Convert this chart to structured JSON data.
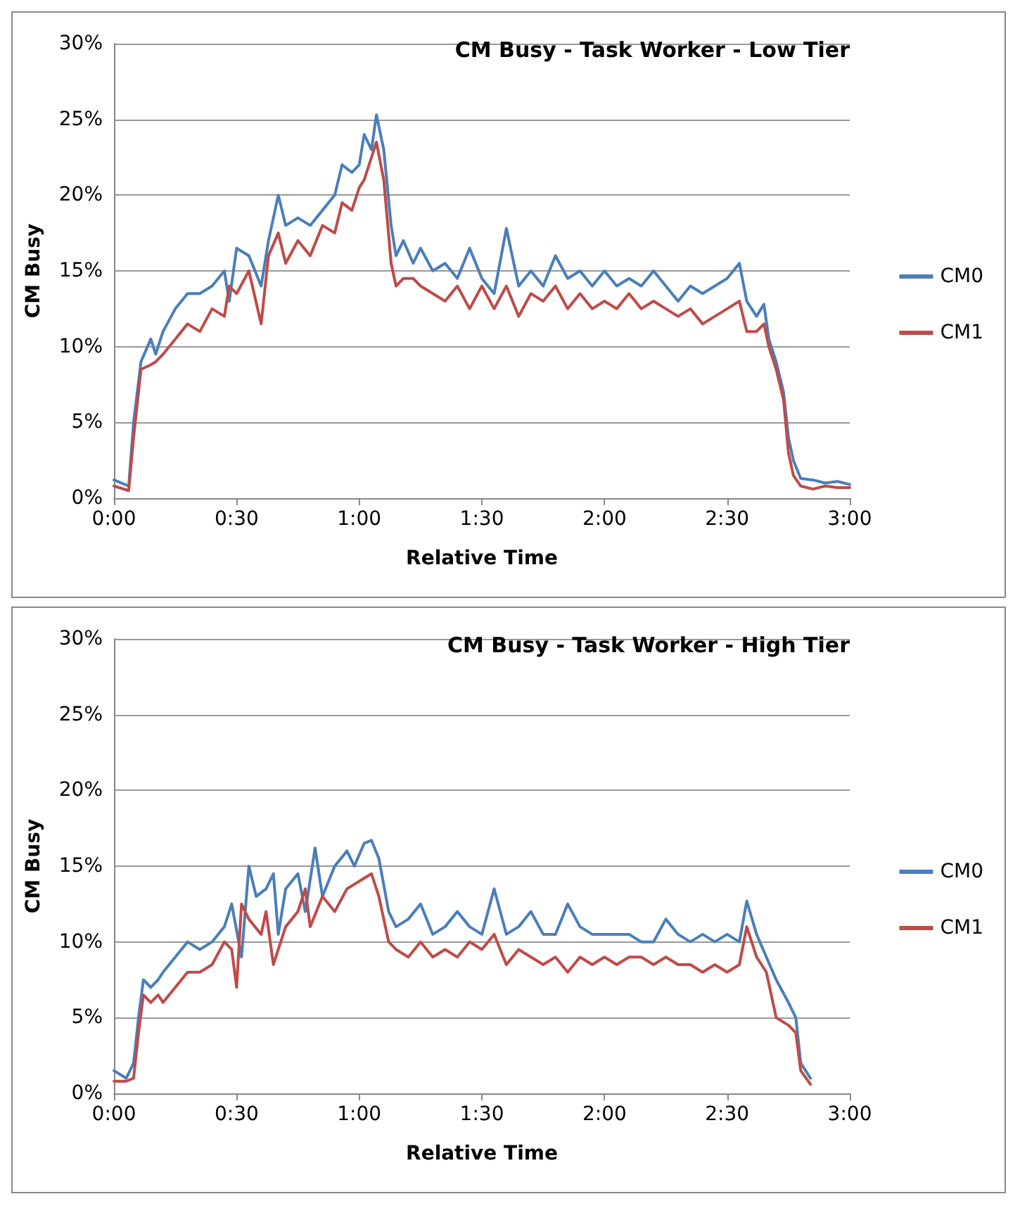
{
  "chart_data": [
    {
      "type": "line",
      "title": "CM Busy - Task Worker - Low Tier",
      "xlabel": "Relative Time",
      "ylabel": "CM Busy",
      "xlim": [
        0,
        3
      ],
      "ylim": [
        0,
        30
      ],
      "xticks": [
        {
          "value": 0,
          "label": "0:00"
        },
        {
          "value": 0.5,
          "label": "0:30"
        },
        {
          "value": 1,
          "label": "1:00"
        },
        {
          "value": 1.5,
          "label": "1:30"
        },
        {
          "value": 2,
          "label": "2:00"
        },
        {
          "value": 2.5,
          "label": "2:30"
        },
        {
          "value": 3,
          "label": "3:00"
        }
      ],
      "yticks": [
        {
          "value": 0,
          "label": "0%"
        },
        {
          "value": 5,
          "label": "5%"
        },
        {
          "value": 10,
          "label": "10%"
        },
        {
          "value": 15,
          "label": "15%"
        },
        {
          "value": 20,
          "label": "20%"
        },
        {
          "value": 25,
          "label": "25%"
        },
        {
          "value": 30,
          "label": "30%"
        }
      ],
      "grid": "y",
      "legend": "right",
      "marker": "none",
      "line_style": "solid",
      "x": [
        0,
        0.06,
        0.08,
        0.11,
        0.15,
        0.17,
        0.2,
        0.25,
        0.3,
        0.35,
        0.4,
        0.45,
        0.47,
        0.5,
        0.55,
        0.6,
        0.63,
        0.67,
        0.7,
        0.75,
        0.8,
        0.85,
        0.9,
        0.93,
        0.97,
        1.0,
        1.02,
        1.05,
        1.07,
        1.1,
        1.13,
        1.15,
        1.18,
        1.22,
        1.25,
        1.3,
        1.35,
        1.4,
        1.45,
        1.5,
        1.55,
        1.6,
        1.65,
        1.7,
        1.75,
        1.8,
        1.85,
        1.9,
        1.95,
        2.0,
        2.05,
        2.1,
        2.15,
        2.2,
        2.25,
        2.3,
        2.35,
        2.4,
        2.45,
        2.5,
        2.55,
        2.58,
        2.62,
        2.65,
        2.67,
        2.7,
        2.73,
        2.75,
        2.77,
        2.8,
        2.85,
        2.9,
        2.95,
        3.0
      ],
      "series": [
        {
          "name": "CM0",
          "color": "#4a7ebb",
          "values": [
            1.2,
            0.8,
            5,
            9,
            10.5,
            9.5,
            11,
            12.5,
            13.5,
            13.5,
            14,
            15,
            13,
            16.5,
            16,
            14,
            17,
            20,
            18,
            18.5,
            18,
            19,
            20,
            22,
            21.5,
            22,
            24,
            23,
            25.3,
            23,
            18,
            16,
            17,
            15.5,
            16.5,
            15,
            15.5,
            14.5,
            16.5,
            14.5,
            13.5,
            17.8,
            14,
            15,
            14,
            16,
            14.5,
            15,
            14,
            15,
            14,
            14.5,
            14,
            15,
            14,
            13,
            14,
            13.5,
            14,
            14.5,
            15.5,
            13,
            12,
            12.8,
            10.5,
            9,
            7,
            4,
            2.5,
            1.3,
            1.2,
            1.0,
            1.1,
            0.9
          ]
        },
        {
          "name": "CM1",
          "color": "#be4b48",
          "values": [
            0.8,
            0.5,
            4,
            8.5,
            8.8,
            9,
            9.5,
            10.5,
            11.5,
            11,
            12.5,
            12,
            14,
            13.5,
            15,
            11.5,
            16,
            17.5,
            15.5,
            17,
            16,
            18,
            17.5,
            19.5,
            19,
            20.5,
            21,
            22.5,
            23.5,
            21,
            15.5,
            14,
            14.5,
            14.5,
            14,
            13.5,
            13,
            14,
            12.5,
            14,
            12.5,
            14,
            12,
            13.5,
            13,
            14,
            12.5,
            13.5,
            12.5,
            13,
            12.5,
            13.5,
            12.5,
            13,
            12.5,
            12,
            12.5,
            11.5,
            12,
            12.5,
            13,
            11,
            11,
            11.5,
            10,
            8.5,
            6.5,
            3,
            1.5,
            0.8,
            0.6,
            0.8,
            0.7,
            0.7
          ]
        }
      ]
    },
    {
      "type": "line",
      "title": "CM Busy - Task Worker - High Tier",
      "xlabel": "Relative Time",
      "ylabel": "CM Busy",
      "xlim": [
        0,
        3
      ],
      "ylim": [
        0,
        30
      ],
      "xticks": [
        {
          "value": 0,
          "label": "0:00"
        },
        {
          "value": 0.5,
          "label": "0:30"
        },
        {
          "value": 1,
          "label": "1:00"
        },
        {
          "value": 1.5,
          "label": "1:30"
        },
        {
          "value": 2,
          "label": "2:00"
        },
        {
          "value": 2.5,
          "label": "2:30"
        },
        {
          "value": 3,
          "label": "3:00"
        }
      ],
      "yticks": [
        {
          "value": 0,
          "label": "0%"
        },
        {
          "value": 5,
          "label": "5%"
        },
        {
          "value": 10,
          "label": "10%"
        },
        {
          "value": 15,
          "label": "15%"
        },
        {
          "value": 20,
          "label": "20%"
        },
        {
          "value": 25,
          "label": "25%"
        },
        {
          "value": 30,
          "label": "30%"
        }
      ],
      "grid": "y",
      "legend": "right",
      "marker": "none",
      "line_style": "solid",
      "series": [
        {
          "name": "CM0",
          "color": "#4a7ebb",
          "x": [
            0,
            0.05,
            0.08,
            0.1,
            0.12,
            0.15,
            0.18,
            0.2,
            0.25,
            0.3,
            0.35,
            0.4,
            0.45,
            0.48,
            0.52,
            0.55,
            0.58,
            0.62,
            0.65,
            0.67,
            0.7,
            0.75,
            0.78,
            0.82,
            0.85,
            0.9,
            0.95,
            0.98,
            1.02,
            1.05,
            1.08,
            1.12,
            1.15,
            1.2,
            1.25,
            1.3,
            1.35,
            1.4,
            1.45,
            1.5,
            1.55,
            1.6,
            1.65,
            1.7,
            1.75,
            1.8,
            1.85,
            1.9,
            1.95,
            2.0,
            2.05,
            2.1,
            2.15,
            2.2,
            2.25,
            2.3,
            2.35,
            2.4,
            2.45,
            2.5,
            2.55,
            2.58,
            2.62,
            2.66,
            2.7,
            2.75,
            2.78,
            2.8,
            2.84
          ],
          "values": [
            1.5,
            1,
            2,
            5,
            7.5,
            7,
            7.5,
            8,
            9,
            10,
            9.5,
            10,
            11,
            12.5,
            9,
            15,
            13,
            13.5,
            14.5,
            10.5,
            13.5,
            14.5,
            12,
            16.2,
            13,
            15,
            16,
            15,
            16.5,
            16.7,
            15.5,
            12,
            11,
            11.5,
            12.5,
            10.5,
            11,
            12,
            11,
            10.5,
            13.5,
            10.5,
            11,
            12,
            10.5,
            10.5,
            12.5,
            11,
            10.5,
            10.5,
            10.5,
            10.5,
            10,
            10,
            11.5,
            10.5,
            10,
            10.5,
            10,
            10.5,
            10,
            12.7,
            10.5,
            9,
            7.5,
            6,
            5,
            2,
            1
          ]
        },
        {
          "name": "CM1",
          "color": "#be4b48",
          "x": [
            0,
            0.05,
            0.08,
            0.1,
            0.12,
            0.15,
            0.18,
            0.2,
            0.25,
            0.3,
            0.35,
            0.4,
            0.45,
            0.48,
            0.5,
            0.52,
            0.55,
            0.6,
            0.62,
            0.65,
            0.7,
            0.75,
            0.78,
            0.8,
            0.85,
            0.9,
            0.95,
            1.0,
            1.05,
            1.08,
            1.12,
            1.15,
            1.2,
            1.25,
            1.3,
            1.35,
            1.4,
            1.45,
            1.5,
            1.55,
            1.6,
            1.65,
            1.7,
            1.75,
            1.8,
            1.85,
            1.9,
            1.95,
            2.0,
            2.05,
            2.1,
            2.15,
            2.2,
            2.25,
            2.3,
            2.35,
            2.4,
            2.45,
            2.5,
            2.55,
            2.58,
            2.62,
            2.66,
            2.7,
            2.75,
            2.78,
            2.8,
            2.84
          ],
          "values": [
            0.8,
            0.8,
            1,
            4,
            6.5,
            6,
            6.5,
            6,
            7,
            8,
            8,
            8.5,
            10,
            9.5,
            7,
            12.5,
            11.5,
            10.5,
            12,
            8.5,
            11,
            12,
            13.5,
            11,
            13,
            12,
            13.5,
            14,
            14.5,
            13,
            10,
            9.5,
            9,
            10,
            9,
            9.5,
            9,
            10,
            9.5,
            10.5,
            8.5,
            9.5,
            9,
            8.5,
            9,
            8,
            9,
            8.5,
            9,
            8.5,
            9,
            9,
            8.5,
            9,
            8.5,
            8.5,
            8,
            8.5,
            8,
            8.5,
            11,
            9,
            8,
            5,
            4.5,
            4,
            1.5,
            0.6
          ]
        }
      ]
    }
  ]
}
